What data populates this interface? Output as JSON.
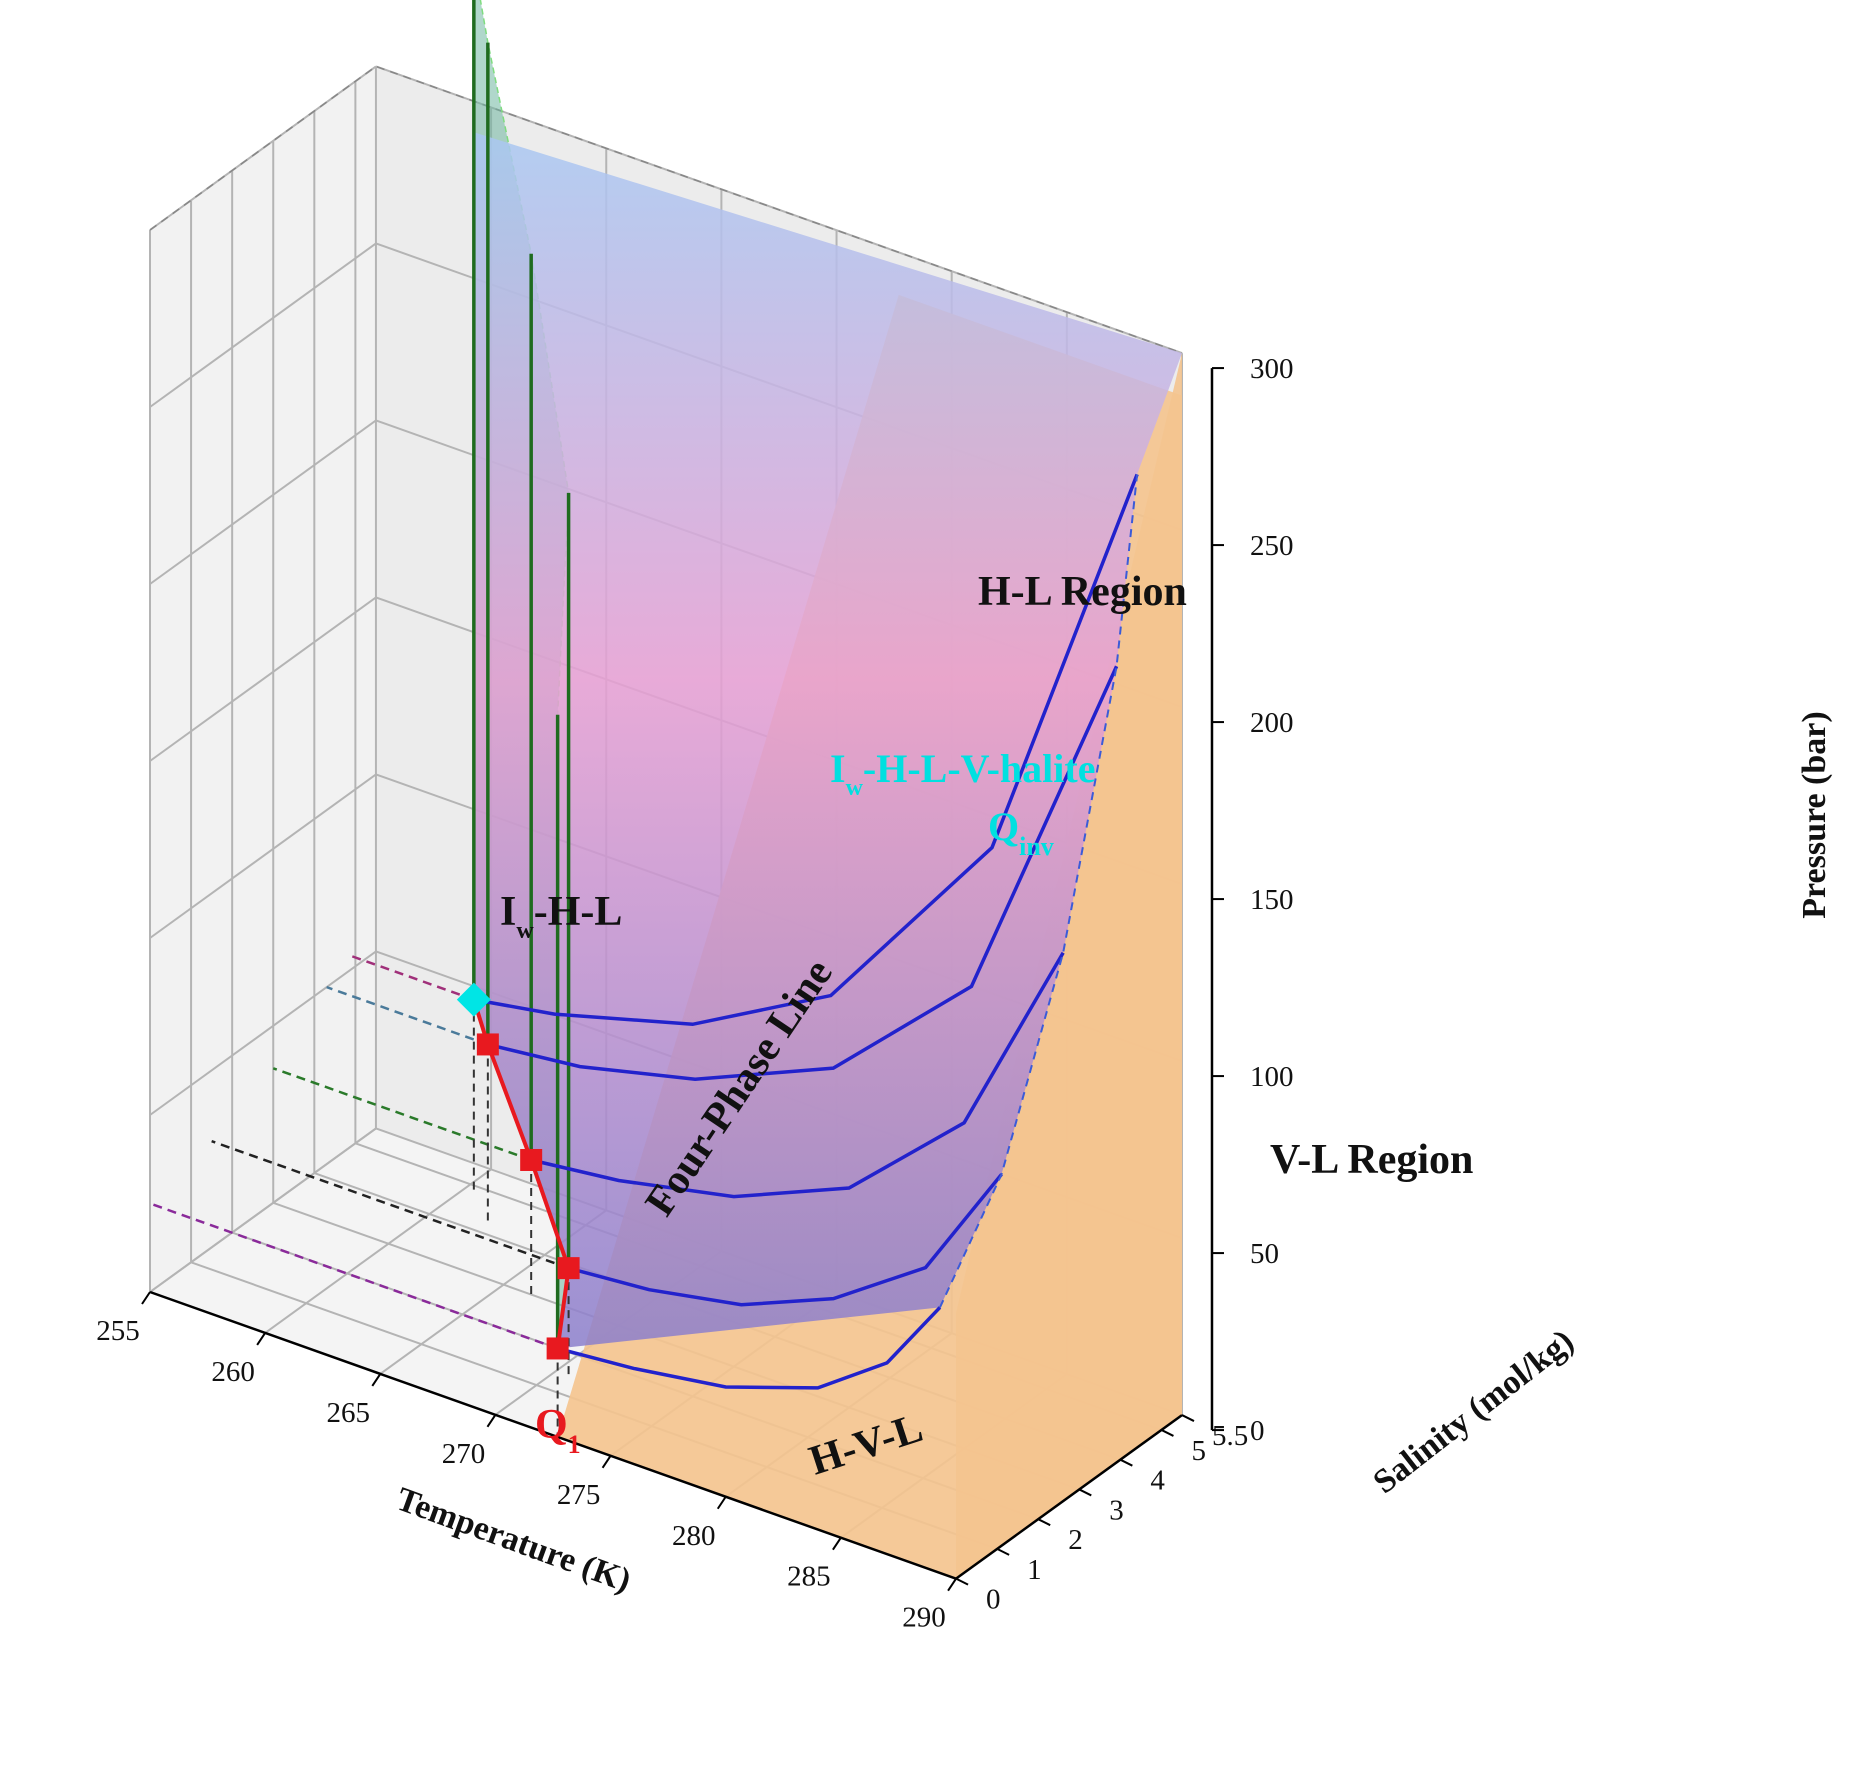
{
  "chart_data": {
    "type": "surface3d",
    "title": "",
    "axes": {
      "x": {
        "label": "Temperature (K)",
        "range": [
          255,
          290
        ],
        "ticks": [
          "255",
          "260",
          "265",
          "270",
          "275",
          "280",
          "285",
          "290"
        ]
      },
      "y": {
        "label": "Salinity (mol/kg)",
        "range": [
          0,
          5.5
        ],
        "ticks": [
          "0",
          "1",
          "2",
          "3",
          "4",
          "5",
          "5.5"
        ]
      },
      "z": {
        "label": "Pressure (bar)",
        "range": [
          0,
          300
        ],
        "ticks": [
          "0",
          "50",
          "100",
          "150",
          "200",
          "250",
          "300"
        ]
      }
    },
    "four_phase_line": {
      "label": "Four-Phase Line",
      "points": [
        {
          "T": 272.7,
          "S": 0,
          "P": 25
        },
        {
          "T": 270.5,
          "S": 1.5,
          "P": 30
        },
        {
          "T": 266.2,
          "S": 3.0,
          "P": 38
        },
        {
          "T": 262.0,
          "S": 4.3,
          "P": 50
        },
        {
          "T": 260.5,
          "S": 4.8,
          "P": 55
        }
      ]
    },
    "markers": [
      {
        "label": "Q",
        "subscript": "1",
        "T": 272.7,
        "S": 0,
        "P": 25
      },
      {
        "label": "Q",
        "subscript": "inv",
        "T": 260.5,
        "S": 4.8,
        "P": 55
      }
    ],
    "hvl_curves": [
      {
        "S": 0,
        "points": [
          [
            272.7,
            25
          ],
          [
            276,
            27
          ],
          [
            280,
            31
          ],
          [
            284,
            40
          ],
          [
            287,
            54
          ],
          [
            289.3,
            75
          ]
        ]
      },
      {
        "S": 1.5,
        "points": [
          [
            270.5,
            30
          ],
          [
            274,
            32
          ],
          [
            278,
            37
          ],
          [
            282,
            48
          ],
          [
            286,
            66
          ],
          [
            289.3,
            100
          ]
        ]
      },
      {
        "S": 3.0,
        "points": [
          [
            266.2,
            38
          ],
          [
            270,
            41
          ],
          [
            275,
            48
          ],
          [
            280,
            62
          ],
          [
            285,
            92
          ],
          [
            289.3,
            150
          ]
        ]
      },
      {
        "S": 4.3,
        "points": [
          [
            262.0,
            50
          ],
          [
            266,
            53
          ],
          [
            271,
            61
          ],
          [
            277,
            78
          ],
          [
            283,
            115
          ],
          [
            289.3,
            220
          ]
        ]
      },
      {
        "S": 4.8,
        "points": [
          [
            260.5,
            55
          ],
          [
            264,
            59
          ],
          [
            270,
            70
          ],
          [
            276,
            92
          ],
          [
            283,
            150
          ],
          [
            289.3,
            270
          ]
        ]
      }
    ],
    "regions": [
      {
        "label": "H-L Region"
      },
      {
        "label": "V-L Region"
      },
      {
        "label": "H-V-L"
      },
      {
        "label": "I",
        "subscript": "w",
        "suffix": "-H-L"
      },
      {
        "label": "I",
        "subscript": "w",
        "suffix": "-H-L-V-halite"
      }
    ],
    "colors": {
      "four_phase_line": "#e8191f",
      "hvl_curves": "#2222cc",
      "iwhl_lines": "#1f6b1f",
      "vl_region": "#f4c48f",
      "hl_region_top": "#a9c8f2",
      "hl_region_mid": "#e79fd4",
      "iwhl_region": "#6fb7a0",
      "q_inv": "#00e5e5"
    },
    "grid": true
  }
}
